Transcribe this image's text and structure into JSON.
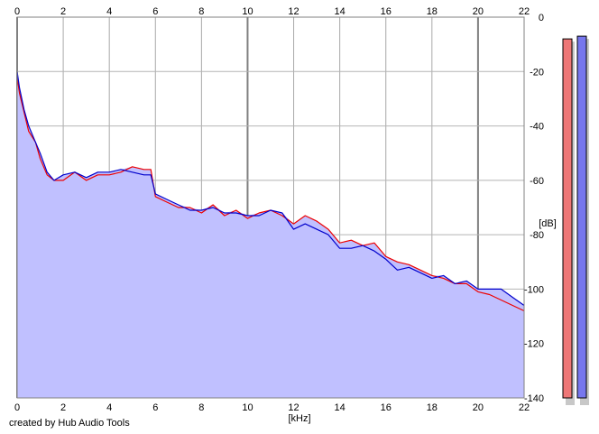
{
  "credit": "created by Hub Audio Tools",
  "chart_data": {
    "type": "line",
    "x_unit_label": "[kHz]",
    "y_unit_label": "[dB]",
    "xlim": [
      0,
      22
    ],
    "ylim": [
      -140,
      0
    ],
    "x_ticks": [
      0,
      2,
      4,
      6,
      8,
      10,
      12,
      14,
      16,
      18,
      20,
      22
    ],
    "y_ticks": [
      0,
      -20,
      -40,
      -60,
      -80,
      -100,
      -120,
      -140
    ],
    "grid": true,
    "series": [
      {
        "color": "#ee0000",
        "x": [
          0,
          0.1,
          0.3,
          0.5,
          0.8,
          1.0,
          1.3,
          1.6,
          2.0,
          2.5,
          3.0,
          3.5,
          4.0,
          4.5,
          5.0,
          5.5,
          5.8,
          6.0,
          6.5,
          7.0,
          7.5,
          8.0,
          8.5,
          9.0,
          9.5,
          10.0,
          10.5,
          11.0,
          11.5,
          12.0,
          12.5,
          13.0,
          13.5,
          14.0,
          14.5,
          15.0,
          15.5,
          16.0,
          16.5,
          17.0,
          17.5,
          18.0,
          18.5,
          19.0,
          19.5,
          20.0,
          20.5,
          21.0,
          21.5,
          22.0
        ],
        "y": [
          -22,
          -28,
          -35,
          -42,
          -46,
          -52,
          -58,
          -60,
          -60,
          -57,
          -60,
          -58,
          -58,
          -57,
          -55,
          -56,
          -56,
          -66,
          -68,
          -70,
          -70,
          -72,
          -69,
          -73,
          -71,
          -74,
          -72,
          -71,
          -73,
          -76,
          -73,
          -75,
          -78,
          -83,
          -82,
          -84,
          -83,
          -88,
          -90,
          -91,
          -93,
          -95,
          -96,
          -98,
          -98,
          -101,
          -102,
          -104,
          -106,
          -108
        ]
      },
      {
        "color": "#0000cc",
        "x": [
          0,
          0.1,
          0.3,
          0.5,
          0.8,
          1.0,
          1.3,
          1.6,
          2.0,
          2.5,
          3.0,
          3.5,
          4.0,
          4.5,
          5.0,
          5.5,
          5.8,
          6.0,
          6.5,
          7.0,
          7.5,
          8.0,
          8.5,
          9.0,
          9.5,
          10.0,
          10.5,
          11.0,
          11.5,
          12.0,
          12.5,
          13.0,
          13.5,
          14.0,
          14.5,
          15.0,
          15.5,
          16.0,
          16.5,
          17.0,
          17.5,
          18.0,
          18.5,
          19.0,
          19.5,
          20.0,
          20.5,
          21.0,
          21.5,
          22.0
        ],
        "y": [
          -20,
          -26,
          -34,
          -40,
          -46,
          -50,
          -57,
          -60,
          -58,
          -57,
          -59,
          -57,
          -57,
          -56,
          -57,
          -58,
          -58,
          -65,
          -67,
          -69,
          -71,
          -71,
          -70,
          -72,
          -72,
          -73,
          -73,
          -71,
          -72,
          -78,
          -76,
          -78,
          -80,
          -85,
          -85,
          -84,
          -86,
          -89,
          -93,
          -92,
          -94,
          -96,
          -95,
          -98,
          -97,
          -100,
          -100,
          -100,
          -103,
          -106
        ]
      }
    ],
    "meters": [
      {
        "color": "#ee7777",
        "top_db": -8
      },
      {
        "color": "#7777ee",
        "top_db": -7
      }
    ]
  }
}
